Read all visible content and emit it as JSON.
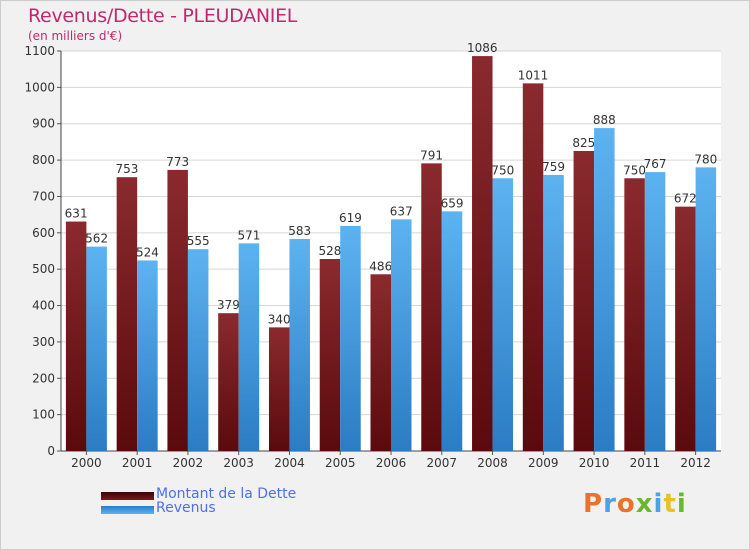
{
  "chart_data": {
    "type": "bar",
    "title": "Revenus/Dette - PLEUDANIEL",
    "subtitle": "(en milliers d'€)",
    "categories": [
      "2000",
      "2001",
      "2002",
      "2003",
      "2004",
      "2005",
      "2006",
      "2007",
      "2008",
      "2009",
      "2010",
      "2011",
      "2012"
    ],
    "series": [
      {
        "name": "Montant de la Dette",
        "color": "#7a1a1e",
        "values": [
          631,
          753,
          773,
          379,
          340,
          528,
          486,
          791,
          1086,
          1011,
          825,
          750,
          672
        ]
      },
      {
        "name": "Revenus",
        "color": "#4ba3e6",
        "values": [
          562,
          524,
          555,
          571,
          583,
          619,
          637,
          659,
          750,
          759,
          888,
          767,
          780
        ]
      }
    ],
    "ylim": [
      0,
      1100
    ],
    "yticks": [
      0,
      100,
      200,
      300,
      400,
      500,
      600,
      700,
      800,
      900,
      1000,
      1100
    ],
    "grid": true,
    "legend_position": "bottom-left"
  },
  "logo": {
    "text": "Proxiti"
  }
}
